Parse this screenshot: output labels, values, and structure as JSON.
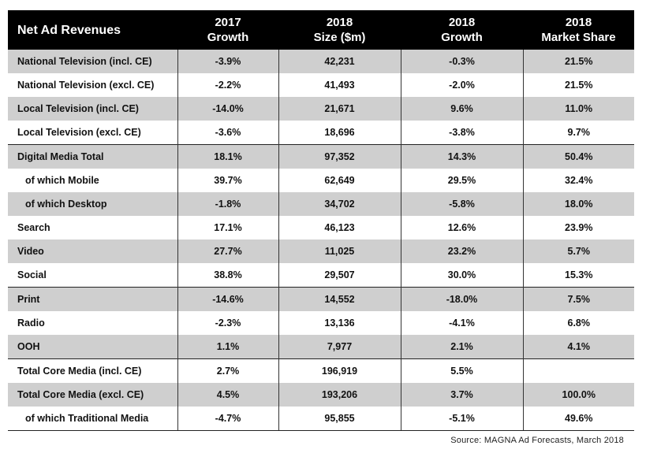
{
  "chart_data": {
    "type": "table",
    "columns": [
      [
        "Net Ad Revenues",
        ""
      ],
      [
        "2017",
        "Growth"
      ],
      [
        "2018",
        "Size ($m)"
      ],
      [
        "2018",
        "Growth"
      ],
      [
        "2018",
        "Market Share"
      ]
    ],
    "rows": [
      {
        "label": "National Television (incl. CE)",
        "cells": [
          "-3.9%",
          "42,231",
          "-0.3%",
          "21.5%"
        ],
        "shaded": true,
        "indent": false,
        "sep": false
      },
      {
        "label": "National Television (excl. CE)",
        "cells": [
          "-2.2%",
          "41,493",
          "-2.0%",
          "21.5%"
        ],
        "shaded": false,
        "indent": false,
        "sep": false
      },
      {
        "label": "Local Television (incl. CE)",
        "cells": [
          "-14.0%",
          "21,671",
          "9.6%",
          "11.0%"
        ],
        "shaded": true,
        "indent": false,
        "sep": false
      },
      {
        "label": "Local Television (excl. CE)",
        "cells": [
          "-3.6%",
          "18,696",
          "-3.8%",
          "9.7%"
        ],
        "shaded": false,
        "indent": false,
        "sep": false
      },
      {
        "label": "Digital Media Total",
        "cells": [
          "18.1%",
          "97,352",
          "14.3%",
          "50.4%"
        ],
        "shaded": true,
        "indent": false,
        "sep": true
      },
      {
        "label": "of which Mobile",
        "cells": [
          "39.7%",
          "62,649",
          "29.5%",
          "32.4%"
        ],
        "shaded": false,
        "indent": true,
        "sep": false
      },
      {
        "label": "of which Desktop",
        "cells": [
          "-1.8%",
          "34,702",
          "-5.8%",
          "18.0%"
        ],
        "shaded": true,
        "indent": true,
        "sep": false
      },
      {
        "label": "Search",
        "cells": [
          "17.1%",
          "46,123",
          "12.6%",
          "23.9%"
        ],
        "shaded": false,
        "indent": false,
        "sep": false
      },
      {
        "label": "Video",
        "cells": [
          "27.7%",
          "11,025",
          "23.2%",
          "5.7%"
        ],
        "shaded": true,
        "indent": false,
        "sep": false
      },
      {
        "label": "Social",
        "cells": [
          "38.8%",
          "29,507",
          "30.0%",
          "15.3%"
        ],
        "shaded": false,
        "indent": false,
        "sep": false
      },
      {
        "label": "Print",
        "cells": [
          "-14.6%",
          "14,552",
          "-18.0%",
          "7.5%"
        ],
        "shaded": true,
        "indent": false,
        "sep": true
      },
      {
        "label": "Radio",
        "cells": [
          "-2.3%",
          "13,136",
          "-4.1%",
          "6.8%"
        ],
        "shaded": false,
        "indent": false,
        "sep": false
      },
      {
        "label": "OOH",
        "cells": [
          "1.1%",
          "7,977",
          "2.1%",
          "4.1%"
        ],
        "shaded": true,
        "indent": false,
        "sep": false
      },
      {
        "label": "Total Core Media (incl. CE)",
        "cells": [
          "2.7%",
          "196,919",
          "5.5%",
          ""
        ],
        "shaded": false,
        "indent": false,
        "sep": true
      },
      {
        "label": "Total Core Media (excl. CE)",
        "cells": [
          "4.5%",
          "193,206",
          "3.7%",
          "100.0%"
        ],
        "shaded": true,
        "indent": false,
        "sep": false
      },
      {
        "label": "of which Traditional Media",
        "cells": [
          "-4.7%",
          "95,855",
          "-5.1%",
          "49.6%"
        ],
        "shaded": false,
        "indent": true,
        "sep": false
      }
    ],
    "colors": {
      "header_bg": "#000000",
      "header_text": "#ffffff",
      "shade": "#cfcfcf"
    }
  },
  "source": "Source: MAGNA Ad Forecasts, March 2018"
}
